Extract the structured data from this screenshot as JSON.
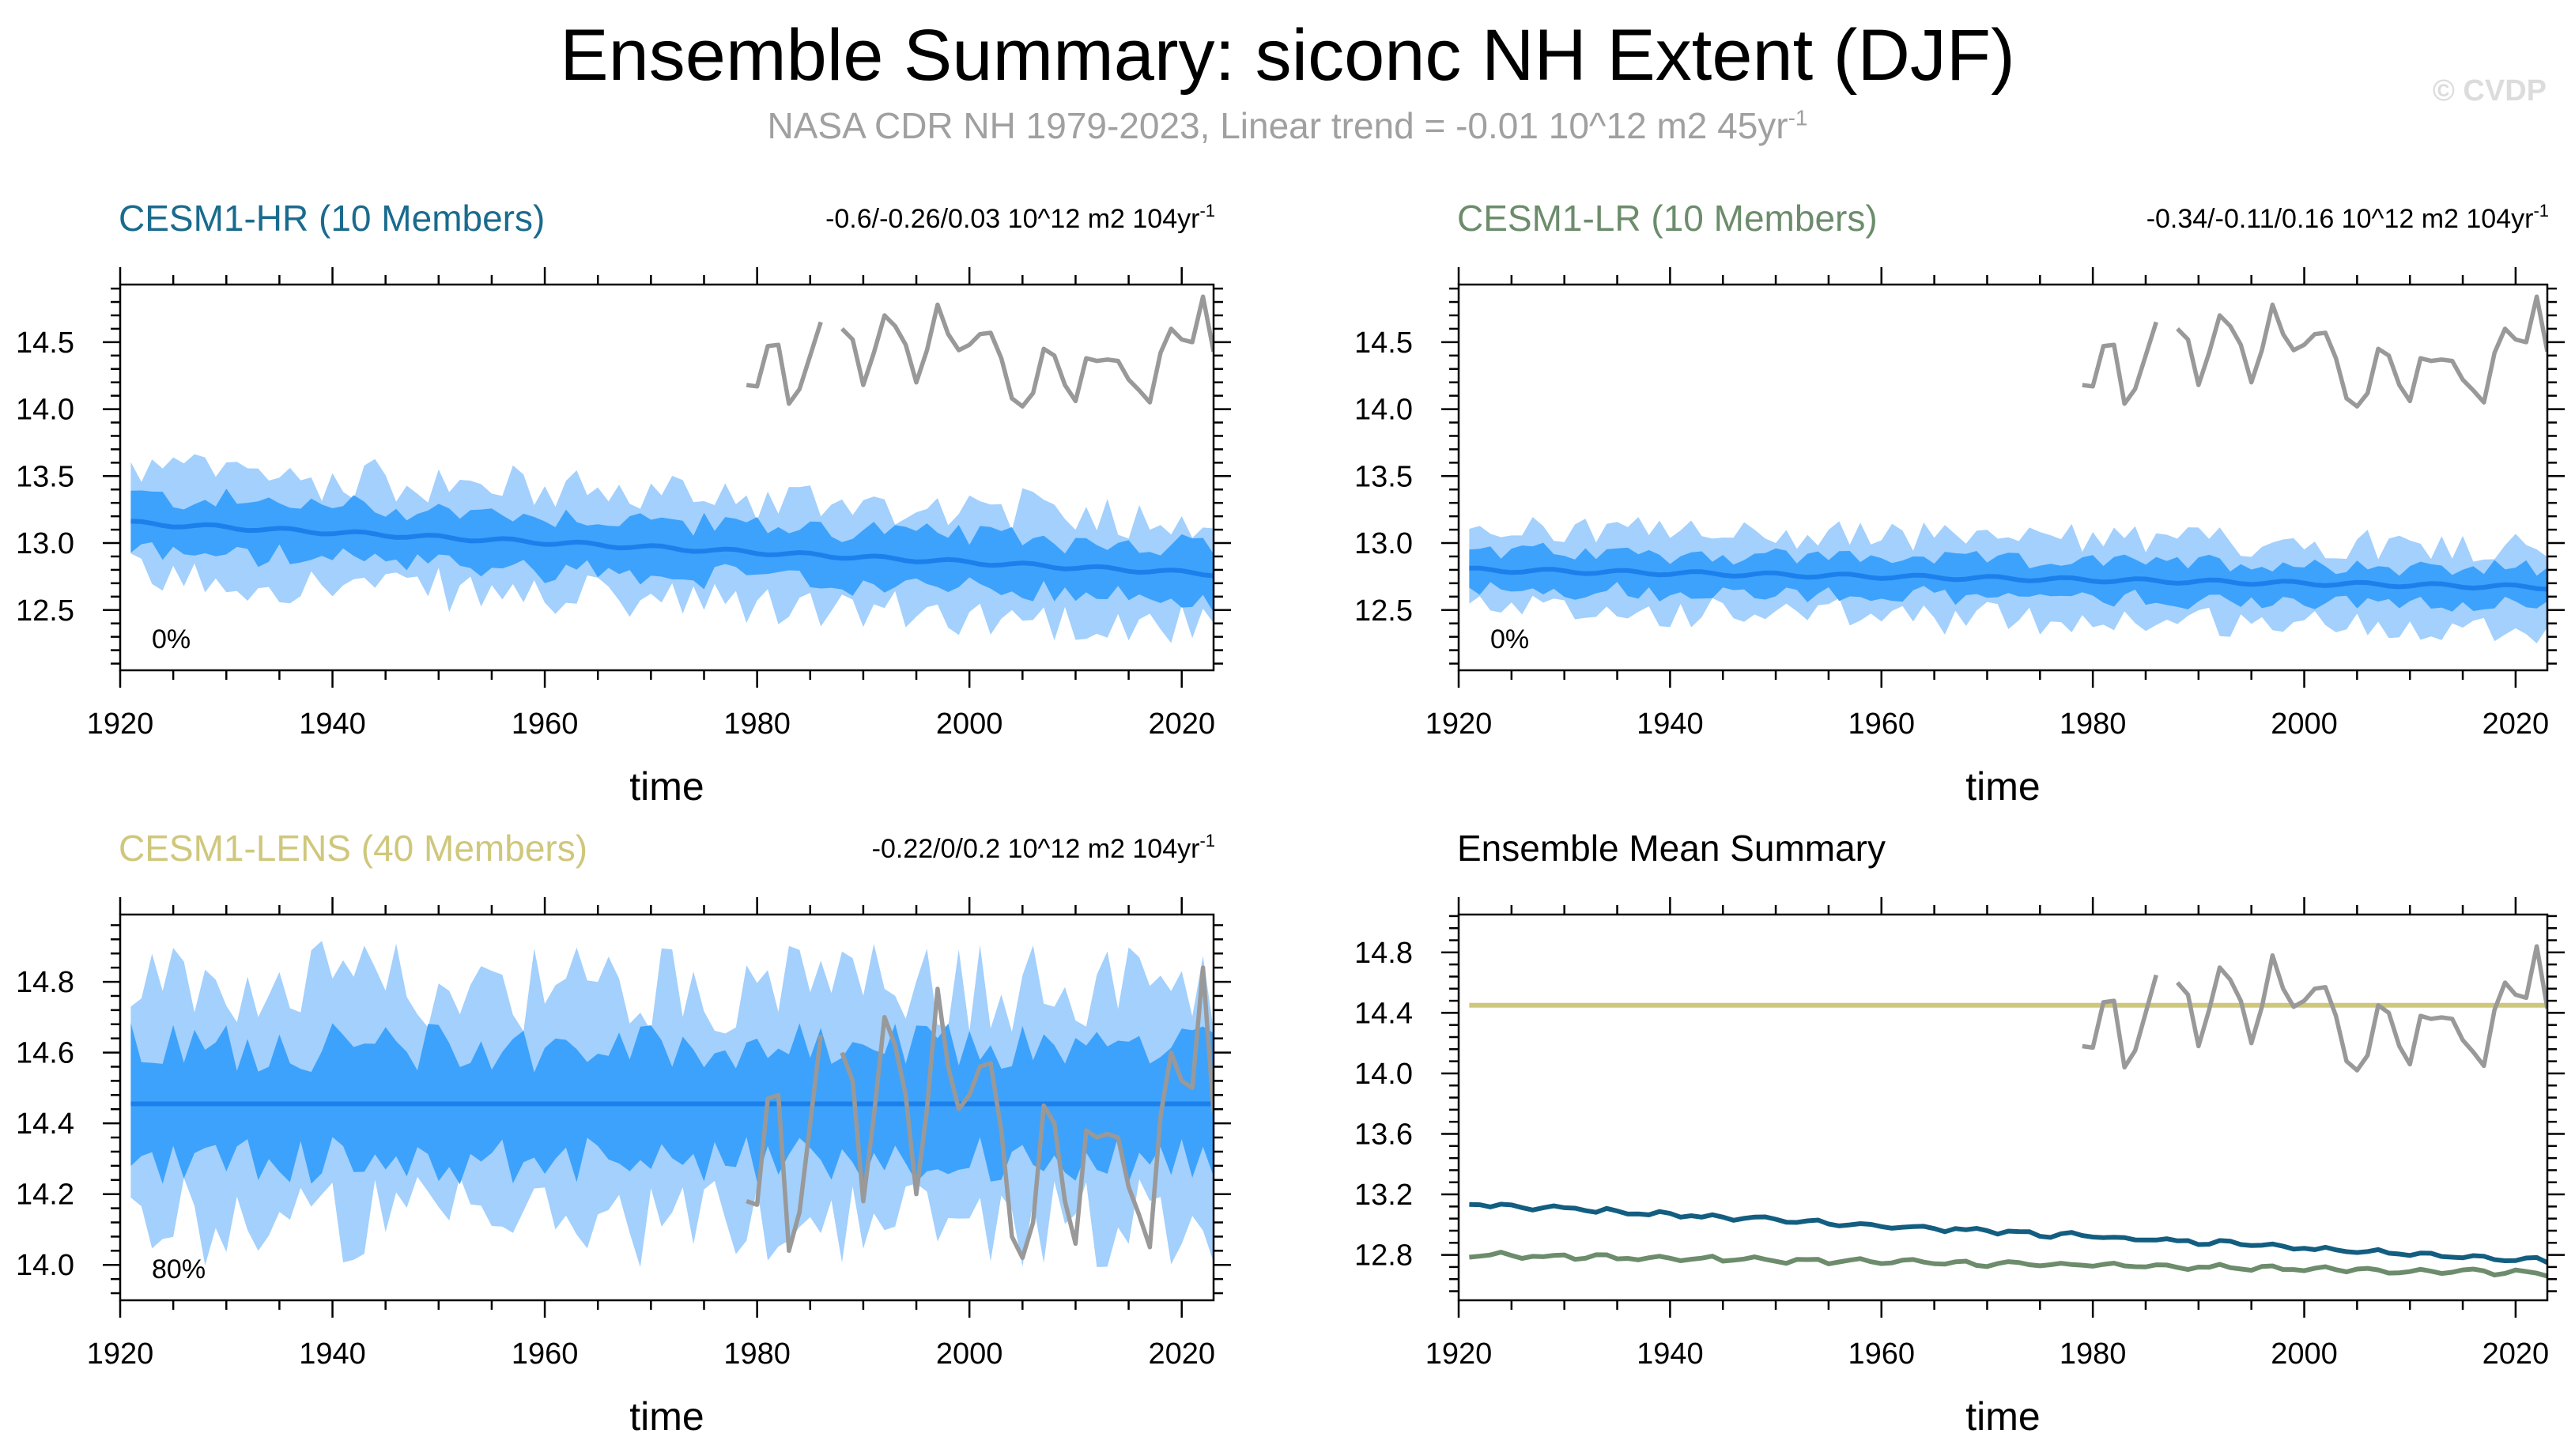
{
  "title": "Ensemble Summary: siconc NH Extent (DJF)",
  "subtitle": {
    "text": "NASA CDR NH 1979-2023, Linear trend = -0.01 10^12 m2 45yr",
    "superscript": "-1"
  },
  "watermark": "© CVDP",
  "colors": {
    "band_outer": "#a3d0fc",
    "band_inner": "#3da2fb",
    "ens_mean": "#1c80ec",
    "obs": "#999999",
    "hr_title": "#1a6b8d",
    "lr_title": "#6c8c6c",
    "lens_title": "#cfc77c",
    "summary_hr": "#135e80",
    "summary_lr": "#6c8c6c",
    "summary_lens": "#cfc77c"
  },
  "chart_data": [
    {
      "type": "area",
      "id": "hr",
      "title": "CESM1-HR (10 Members)",
      "trend_label": "-0.6/-0.26/0.03 10^12 m2 104yr",
      "trend_sup": "-1",
      "percent_label": "0%",
      "xlabel": "time",
      "xlim": [
        1920,
        2023
      ],
      "ylim": [
        12.05,
        14.93
      ],
      "xticks": [
        1920,
        1940,
        1960,
        1980,
        2000,
        2020
      ],
      "yticks": [
        "12.5",
        "13.0",
        "13.5",
        "14.0",
        "14.5"
      ],
      "ens_mean": {
        "start": 13.15,
        "end": 12.77
      },
      "inner_half_width": 0.2,
      "outer_half_width": 0.4
    },
    {
      "type": "area",
      "id": "lr",
      "title": "CESM1-LR (10 Members)",
      "trend_label": "-0.34/-0.11/0.16 10^12 m2 104yr",
      "trend_sup": "-1",
      "percent_label": "0%",
      "xlabel": "time",
      "xlim": [
        1920,
        2023
      ],
      "ylim": [
        12.05,
        14.93
      ],
      "xticks": [
        1920,
        1940,
        1960,
        1980,
        2000,
        2020
      ],
      "yticks": [
        "12.5",
        "13.0",
        "13.5",
        "14.0",
        "14.5"
      ],
      "ens_mean": {
        "start": 12.8,
        "end": 12.67
      },
      "inner_half_width": 0.14,
      "outer_half_width": 0.3
    },
    {
      "type": "area",
      "id": "lens",
      "title": "CESM1-LENS (40 Members)",
      "trend_label": "-0.22/0/0.2 10^12 m2 104yr",
      "trend_sup": "-1",
      "percent_label": "80%",
      "xlabel": "time",
      "xlim": [
        1920,
        2023
      ],
      "ylim": [
        13.9,
        14.99
      ],
      "xticks": [
        1920,
        1940,
        1960,
        1980,
        2000,
        2020
      ],
      "yticks": [
        "14.0",
        "14.2",
        "14.4",
        "14.6",
        "14.8"
      ],
      "ens_mean": {
        "start": 14.455,
        "end": 14.455
      },
      "inner_half_width": 0.16,
      "outer_half_width": 0.33
    },
    {
      "type": "line",
      "id": "summary",
      "title": "Ensemble Mean Summary",
      "xlabel": "time",
      "xlim": [
        1920,
        2023
      ],
      "ylim": [
        12.5,
        15.05
      ],
      "xticks": [
        1920,
        1940,
        1960,
        1980,
        2000,
        2020
      ],
      "yticks": [
        "12.8",
        "13.2",
        "13.6",
        "14.0",
        "14.4",
        "14.8"
      ],
      "series": [
        {
          "name": "CESM1-HR",
          "start": 13.14,
          "end": 12.76
        },
        {
          "name": "CESM1-LR",
          "start": 12.8,
          "end": 12.68
        },
        {
          "name": "CESM1-LENS",
          "start": 14.45,
          "end": 14.45
        }
      ]
    }
  ],
  "observations": {
    "name": "NASA CDR NH",
    "segment1": {
      "x": [
        1979,
        1980,
        1981,
        1982,
        1983,
        1984,
        1985,
        1986
      ],
      "y": [
        14.18,
        14.17,
        14.47,
        14.48,
        14.04,
        14.15,
        14.4,
        14.65
      ]
    },
    "segment2": {
      "x": [
        1988,
        1989,
        1990,
        1991,
        1992,
        1993,
        1994,
        1995,
        1996,
        1997,
        1998,
        1999,
        2000,
        2001,
        2002,
        2003,
        2004,
        2005,
        2006,
        2007,
        2008,
        2009,
        2010,
        2011,
        2012,
        2013,
        2014,
        2015,
        2016,
        2017,
        2018,
        2019,
        2020,
        2021,
        2022,
        2023
      ],
      "y": [
        14.6,
        14.52,
        14.18,
        14.42,
        14.7,
        14.62,
        14.48,
        14.2,
        14.44,
        14.78,
        14.56,
        14.44,
        14.48,
        14.56,
        14.57,
        14.38,
        14.08,
        14.02,
        14.12,
        14.45,
        14.4,
        14.18,
        14.06,
        14.38,
        14.36,
        14.37,
        14.36,
        14.22,
        14.14,
        14.05,
        14.42,
        14.6,
        14.52,
        14.5,
        14.84,
        14.43
      ]
    }
  }
}
